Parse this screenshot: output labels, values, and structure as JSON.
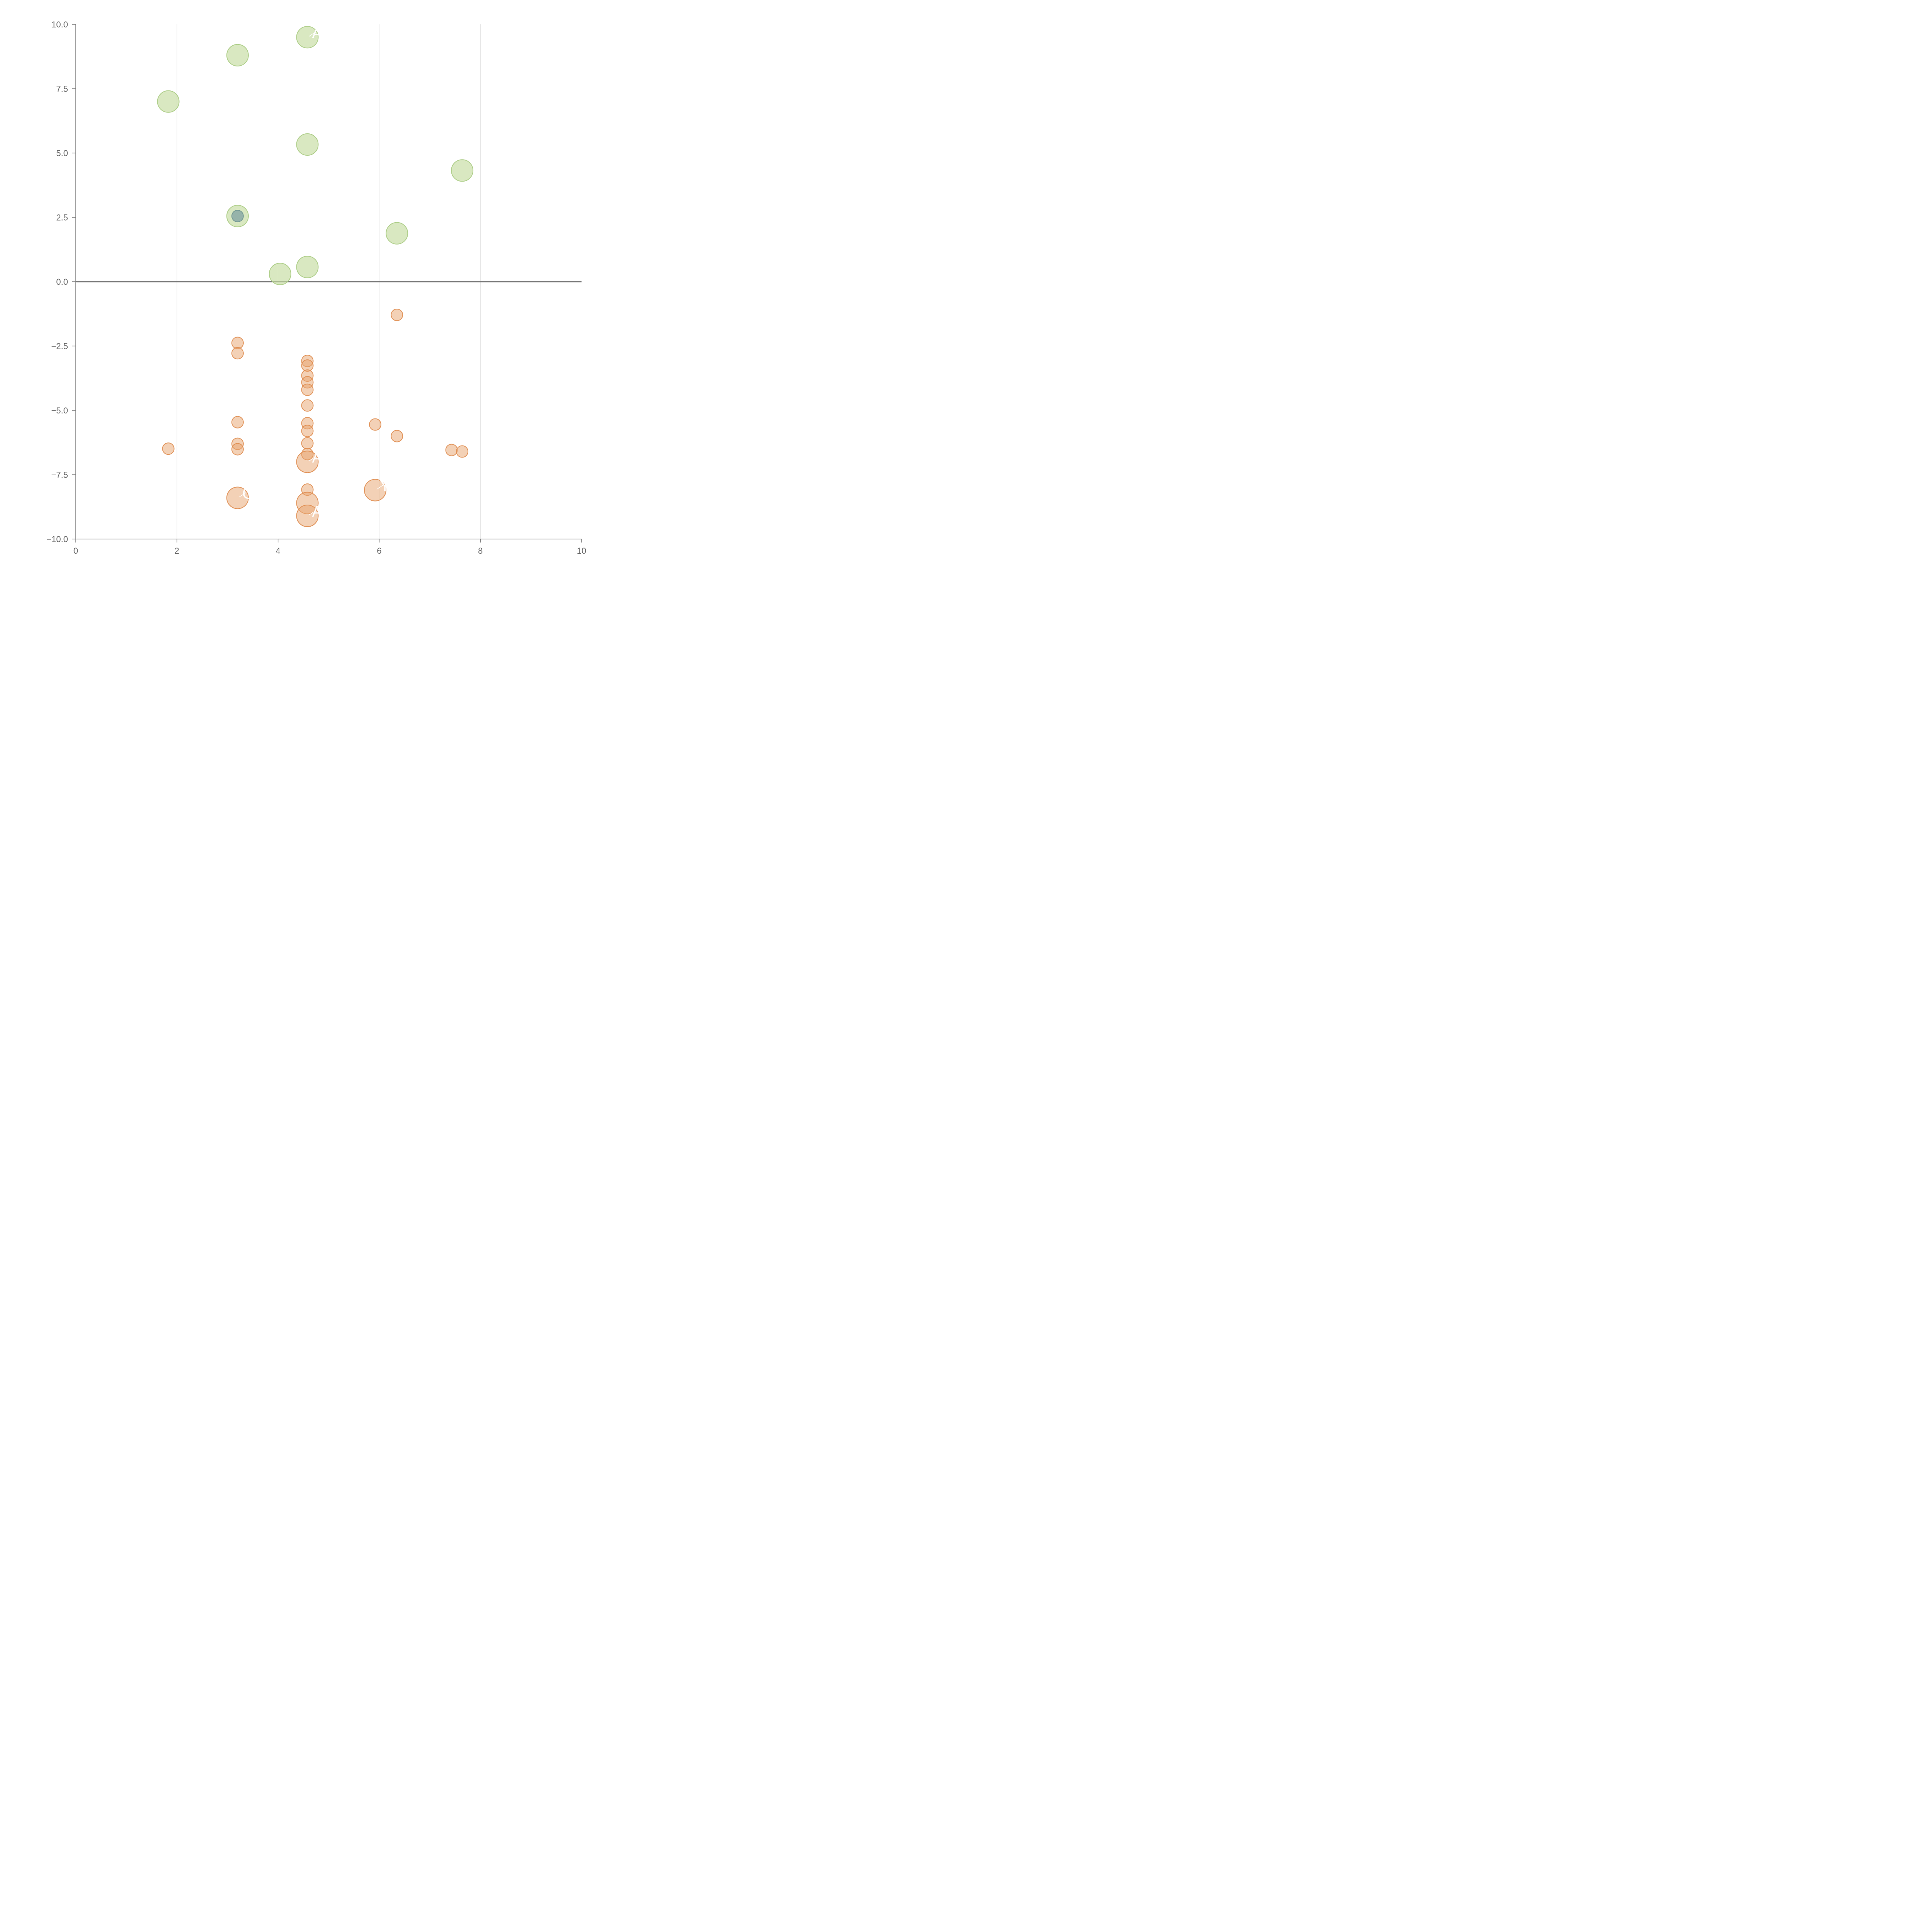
{
  "chart_data": {
    "type": "scatter",
    "title": "",
    "xlabel": "",
    "ylabel": "",
    "xlim": [
      0,
      10
    ],
    "ylim": [
      -10,
      10
    ],
    "xticks": [
      "0",
      "2",
      "4",
      "6",
      "8",
      "10"
    ],
    "yticks": [
      "−10.0",
      "−7.5",
      "−5.0",
      "−2.5",
      "0.0",
      "2.5",
      "5.0",
      "7.5",
      "10.0"
    ],
    "xtick_values": [
      0,
      2,
      4,
      6,
      8,
      10
    ],
    "ytick_values": [
      -10,
      -7.5,
      -5,
      -2.5,
      0,
      2.5,
      5,
      7.5,
      10
    ],
    "grid": "vertical",
    "zero_line": true,
    "colors": {
      "positive_fill": "#c5dca0",
      "positive_stroke": "#a9cb82",
      "negative_fill": "#e8a36d",
      "negative_stroke": "#df8c4f",
      "highlight_fill": "#8aa9a6",
      "highlight_stroke": "#6e9390"
    },
    "series": [
      {
        "kind": "positive",
        "points": [
          {
            "x": 4.58,
            "y": 9.5,
            "size": "large",
            "label": "A"
          },
          {
            "x": 3.2,
            "y": 8.8,
            "size": "large"
          },
          {
            "x": 1.83,
            "y": 7.0,
            "size": "large"
          },
          {
            "x": 4.58,
            "y": 5.33,
            "size": "large"
          },
          {
            "x": 7.64,
            "y": 4.32,
            "size": "large"
          },
          {
            "x": 3.2,
            "y": 2.55,
            "size": "large"
          },
          {
            "x": 6.35,
            "y": 1.88,
            "size": "large"
          },
          {
            "x": 4.58,
            "y": 0.57,
            "size": "large"
          },
          {
            "x": 4.04,
            "y": 0.3,
            "size": "large"
          }
        ]
      },
      {
        "kind": "highlight",
        "points": [
          {
            "x": 3.2,
            "y": 2.55,
            "size": "small"
          }
        ]
      },
      {
        "kind": "negative",
        "points": [
          {
            "x": 6.35,
            "y": -1.29,
            "size": "small"
          },
          {
            "x": 3.2,
            "y": -2.38,
            "size": "small"
          },
          {
            "x": 3.2,
            "y": -2.78,
            "size": "small"
          },
          {
            "x": 4.58,
            "y": -3.08,
            "size": "small"
          },
          {
            "x": 4.58,
            "y": -3.26,
            "size": "small"
          },
          {
            "x": 4.58,
            "y": -3.65,
            "size": "small"
          },
          {
            "x": 4.58,
            "y": -3.91,
            "size": "small"
          },
          {
            "x": 4.58,
            "y": -4.2,
            "size": "small"
          },
          {
            "x": 4.58,
            "y": -4.81,
            "size": "small"
          },
          {
            "x": 3.2,
            "y": -5.46,
            "size": "small"
          },
          {
            "x": 4.58,
            "y": -5.5,
            "size": "small"
          },
          {
            "x": 5.92,
            "y": -5.55,
            "size": "small"
          },
          {
            "x": 4.58,
            "y": -5.8,
            "size": "small"
          },
          {
            "x": 6.35,
            "y": -6.0,
            "size": "small"
          },
          {
            "x": 4.58,
            "y": -6.28,
            "size": "small"
          },
          {
            "x": 3.2,
            "y": -6.3,
            "size": "small"
          },
          {
            "x": 1.83,
            "y": -6.49,
            "size": "small"
          },
          {
            "x": 3.2,
            "y": -6.51,
            "size": "small"
          },
          {
            "x": 7.43,
            "y": -6.54,
            "size": "small"
          },
          {
            "x": 7.64,
            "y": -6.6,
            "size": "small"
          },
          {
            "x": 4.58,
            "y": -6.7,
            "size": "small"
          },
          {
            "x": 4.58,
            "y": -7.0,
            "size": "large",
            "label": "A"
          },
          {
            "x": 4.58,
            "y": -8.08,
            "size": "small"
          },
          {
            "x": 5.92,
            "y": -8.1,
            "size": "large",
            "label": "Y"
          },
          {
            "x": 3.2,
            "y": -8.4,
            "size": "large",
            "label": "C"
          },
          {
            "x": 4.58,
            "y": -8.6,
            "size": "large"
          },
          {
            "x": 4.58,
            "y": -9.1,
            "size": "large",
            "label": "A"
          }
        ]
      }
    ]
  }
}
